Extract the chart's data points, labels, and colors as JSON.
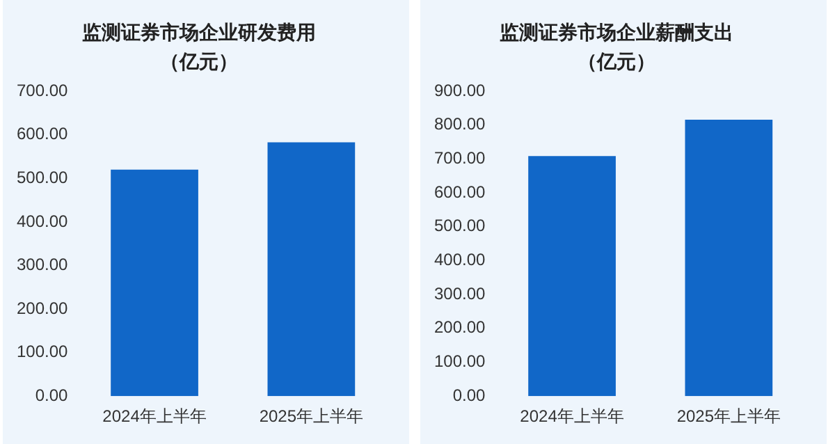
{
  "chart_data": [
    {
      "type": "bar",
      "title": "监测证券市场企业研发费用",
      "subtitle": "（亿元）",
      "categories": [
        "2024年上半年",
        "2025年上半年"
      ],
      "values": [
        520,
        583
      ],
      "color": "#1167c8",
      "ylim": [
        0,
        700
      ],
      "yticks": [
        {
          "value": 0,
          "label": "0.00"
        },
        {
          "value": 100,
          "label": "100.00"
        },
        {
          "value": 200,
          "label": "200.00"
        },
        {
          "value": 300,
          "label": "300.00"
        },
        {
          "value": 400,
          "label": "400.00"
        },
        {
          "value": 500,
          "label": "500.00"
        },
        {
          "value": 600,
          "label": "600.00"
        },
        {
          "value": 700,
          "label": "700.00"
        }
      ],
      "grid": false,
      "legend": false
    },
    {
      "type": "bar",
      "title": "监测证券市场企业薪酬支出",
      "subtitle": "（亿元）",
      "categories": [
        "2024年上半年",
        "2025年上半年"
      ],
      "values": [
        709,
        816
      ],
      "color": "#1167c8",
      "ylim": [
        0,
        900
      ],
      "yticks": [
        {
          "value": 0,
          "label": "0.00"
        },
        {
          "value": 100,
          "label": "100.00"
        },
        {
          "value": 200,
          "label": "200.00"
        },
        {
          "value": 300,
          "label": "300.00"
        },
        {
          "value": 400,
          "label": "400.00"
        },
        {
          "value": 500,
          "label": "500.00"
        },
        {
          "value": 600,
          "label": "600.00"
        },
        {
          "value": 700,
          "label": "700.00"
        },
        {
          "value": 800,
          "label": "800.00"
        },
        {
          "value": 900,
          "label": "900.00"
        }
      ],
      "grid": false,
      "legend": false
    }
  ]
}
